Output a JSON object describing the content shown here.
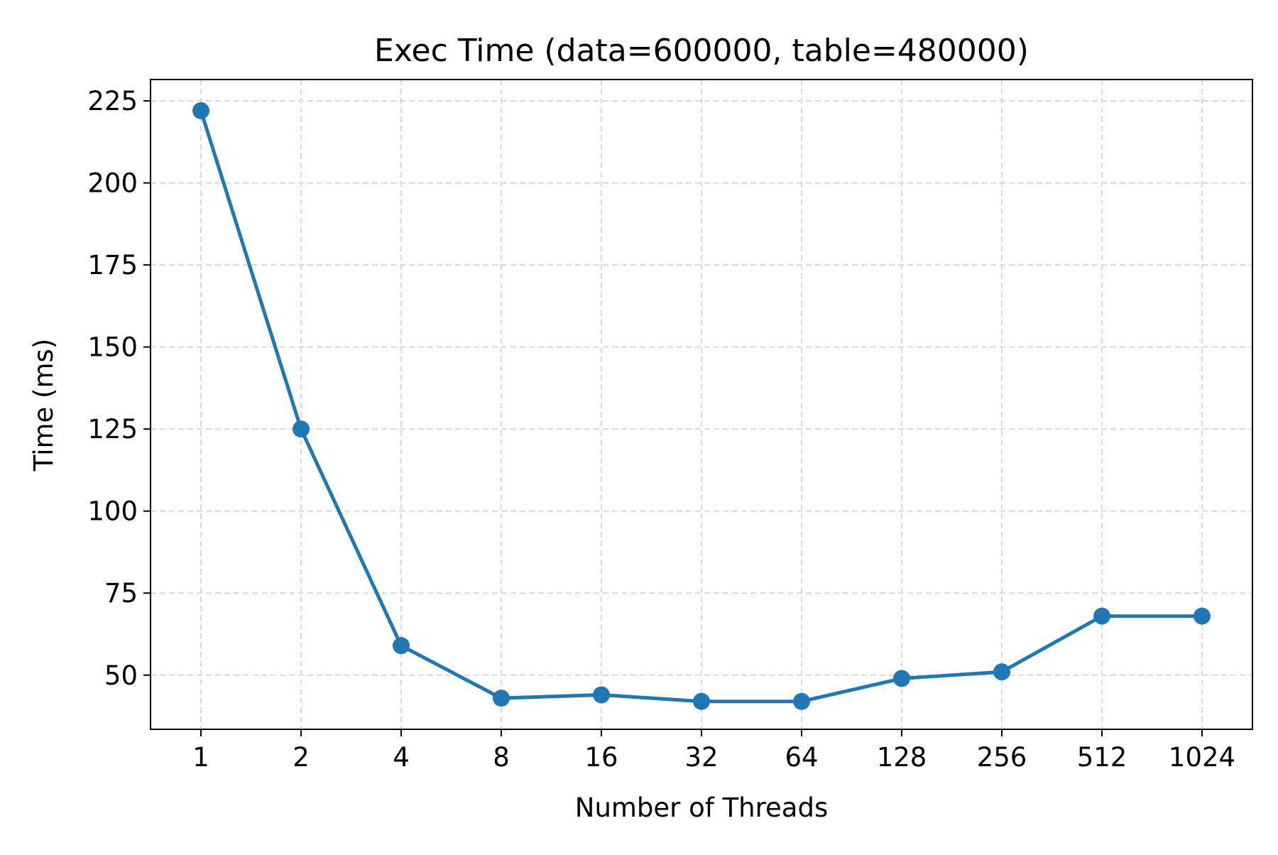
{
  "chart_data": {
    "type": "line",
    "title": "Exec Time (data=600000, table=480000)",
    "xlabel": "Number of Threads",
    "ylabel": "Time (ms)",
    "categories": [
      "1",
      "2",
      "4",
      "8",
      "16",
      "32",
      "64",
      "128",
      "256",
      "512",
      "1024"
    ],
    "series": [
      {
        "values": [
          222,
          125,
          59,
          43,
          44,
          42,
          42,
          49,
          51,
          68,
          68
        ],
        "color": "#1f77b4",
        "marker": "circle"
      }
    ],
    "yticks": [
      50,
      75,
      100,
      125,
      150,
      175,
      200,
      225
    ],
    "ylim": [
      33.5,
      231.5
    ],
    "grid": true,
    "grid_style": "dashed",
    "legend": "none"
  }
}
